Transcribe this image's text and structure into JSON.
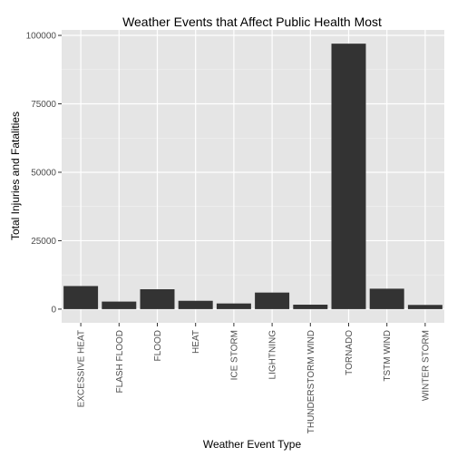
{
  "chart_data": {
    "type": "bar",
    "title": "Weather Events that Affect Public Health Most",
    "xlabel": "Weather Event Type",
    "ylabel": "Total Injuries and Fatalities",
    "categories": [
      "EXCESSIVE HEAT",
      "FLASH FLOOD",
      "FLOOD",
      "HEAT",
      "ICE STORM",
      "LIGHTNING",
      "THUNDERSTORM WIND",
      "TORNADO",
      "TSTM WIND",
      "WINTER STORM"
    ],
    "values": [
      8428,
      2755,
      7259,
      3037,
      2064,
      6046,
      1621,
      96979,
      7461,
      1527
    ],
    "ylim": [
      -5000,
      102000
    ],
    "yticks": [
      0,
      25000,
      50000,
      75000,
      100000
    ],
    "ytick_labels": [
      "0",
      "25000",
      "50000",
      "75000",
      "100000"
    ],
    "grid": true,
    "colors": {
      "bar": "#333333",
      "panel": "#e5e5e5",
      "grid_major": "#ffffff",
      "grid_minor": "#f2f2f2"
    }
  }
}
